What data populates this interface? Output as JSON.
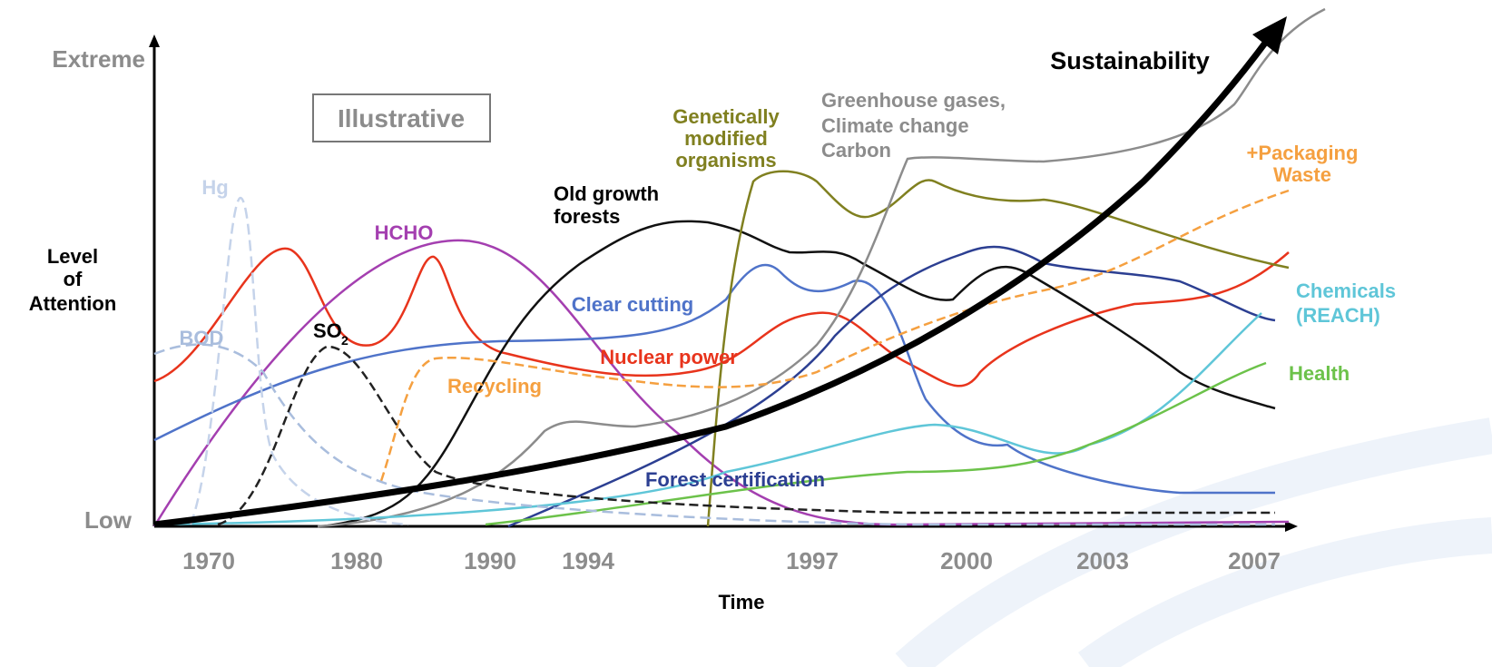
{
  "axis": {
    "y_top": "Extreme",
    "y_bottom": "Low",
    "y_title": [
      "Level",
      "of",
      "Attention"
    ],
    "x_title": "Time",
    "x_labels": [
      "1970",
      "1980",
      "1990",
      "1994",
      "1997",
      "2000",
      "2003",
      "2007"
    ]
  },
  "note": "Illustrative",
  "labels": {
    "hg": "Hg",
    "hcho": "HCHO",
    "bod": "BOD",
    "so2": "SO",
    "so2_sub": "2",
    "old_growth": [
      "Old growth",
      "forests"
    ],
    "gmo": [
      "Genetically",
      "modified",
      "organisms"
    ],
    "ghg": [
      "Greenhouse gases,",
      "Climate change",
      "Carbon"
    ],
    "sustainability": "Sustainability",
    "packaging": [
      "+Packaging",
      "Waste"
    ],
    "chemicals": [
      "Chemicals",
      "(REACH)"
    ],
    "health": "Health",
    "clear_cutting": "Clear cutting",
    "nuclear": "Nuclear power",
    "recycling": "Recycling",
    "forest_cert": "Forest certification"
  }
}
